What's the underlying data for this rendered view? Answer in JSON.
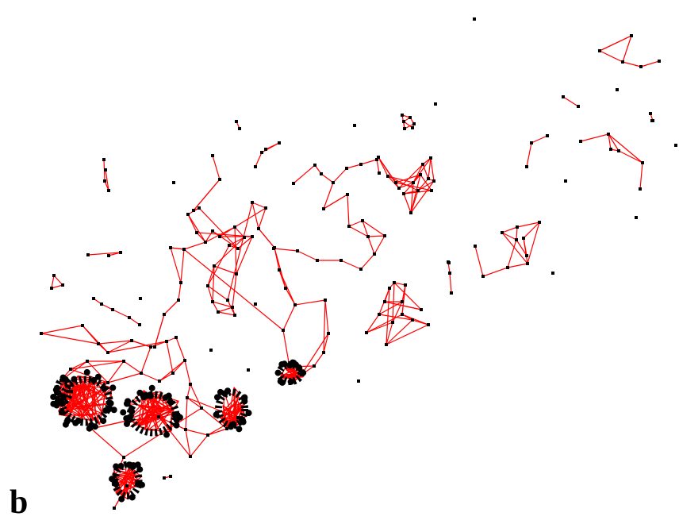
{
  "panel_label": "b",
  "colors": {
    "edge": "#ff0000",
    "node": "#000000",
    "background": "#ffffff"
  }
}
